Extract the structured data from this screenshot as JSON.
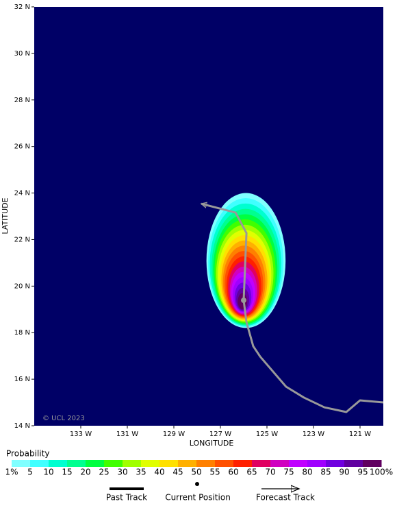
{
  "chart_data": {
    "type": "probability_map",
    "x_label": "LONGITUDE",
    "y_label": "LATITUDE",
    "credit": "© UCL 2023",
    "background": "#000066",
    "xlim": [
      -135,
      -120
    ],
    "xticks": [
      {
        "value": -133,
        "label": "133 W"
      },
      {
        "value": -131,
        "label": "131 W"
      },
      {
        "value": -129,
        "label": "129 W"
      },
      {
        "value": -127,
        "label": "127 W"
      },
      {
        "value": -125,
        "label": "125 W"
      },
      {
        "value": -123,
        "label": "123 W"
      },
      {
        "value": -121,
        "label": "121 W"
      }
    ],
    "ylim": [
      14,
      32
    ],
    "yticks": [
      {
        "value": 14,
        "label": "14 N"
      },
      {
        "value": 16,
        "label": "16 N"
      },
      {
        "value": 18,
        "label": "18 N"
      },
      {
        "value": 20,
        "label": "20 N"
      },
      {
        "value": 22,
        "label": "22 N"
      },
      {
        "value": 24,
        "label": "24 N"
      },
      {
        "value": 26,
        "label": "26 N"
      },
      {
        "value": 28,
        "label": "28 N"
      },
      {
        "value": 30,
        "label": "30 N"
      },
      {
        "value": 32,
        "label": "32 N"
      }
    ],
    "colorbar": {
      "title": "Probability",
      "ticks": [
        {
          "value": 1,
          "label": "1%"
        },
        5,
        10,
        15,
        20,
        25,
        30,
        35,
        40,
        45,
        50,
        55,
        60,
        65,
        70,
        75,
        80,
        85,
        90,
        95,
        {
          "value": 100,
          "label": "100%"
        }
      ],
      "colors": [
        "#80ffff",
        "#40ffff",
        "#00ffd0",
        "#00ff90",
        "#00ff40",
        "#40ff00",
        "#a0ff00",
        "#e0ff00",
        "#ffe000",
        "#ffb000",
        "#ff8000",
        "#ff5000",
        "#ff2000",
        "#e00060",
        "#d000c0",
        "#c000ff",
        "#a000ff",
        "#7000e0",
        "#6000a0",
        "#600060"
      ]
    },
    "contours": [
      {
        "lon": -125.9,
        "lat": 21.1,
        "rx": 1.7,
        "ry": 2.9
      },
      {
        "lon": -125.91,
        "lat": 21.01,
        "rx": 1.62,
        "ry": 2.77
      },
      {
        "lon": -125.92,
        "lat": 20.92,
        "rx": 1.54,
        "ry": 2.63
      },
      {
        "lon": -125.92,
        "lat": 20.82,
        "rx": 1.46,
        "ry": 2.5
      },
      {
        "lon": -125.93,
        "lat": 20.73,
        "rx": 1.38,
        "ry": 2.36
      },
      {
        "lon": -125.94,
        "lat": 20.64,
        "rx": 1.31,
        "ry": 2.23
      },
      {
        "lon": -125.95,
        "lat": 20.55,
        "rx": 1.23,
        "ry": 2.09
      },
      {
        "lon": -125.96,
        "lat": 20.46,
        "rx": 1.15,
        "ry": 1.96
      },
      {
        "lon": -125.96,
        "lat": 20.36,
        "rx": 1.07,
        "ry": 1.83
      },
      {
        "lon": -125.97,
        "lat": 20.27,
        "rx": 0.99,
        "ry": 1.69
      },
      {
        "lon": -125.98,
        "lat": 20.18,
        "rx": 0.91,
        "ry": 1.56
      },
      {
        "lon": -125.99,
        "lat": 20.09,
        "rx": 0.83,
        "ry": 1.42
      },
      {
        "lon": -125.99,
        "lat": 19.99,
        "rx": 0.75,
        "ry": 1.29
      },
      {
        "lon": -126.0,
        "lat": 19.9,
        "rx": 0.67,
        "ry": 1.16
      },
      {
        "lon": -126.01,
        "lat": 19.81,
        "rx": 0.59,
        "ry": 1.02
      },
      {
        "lon": -126.02,
        "lat": 19.72,
        "rx": 0.52,
        "ry": 0.89
      },
      {
        "lon": -126.03,
        "lat": 19.63,
        "rx": 0.44,
        "ry": 0.75
      },
      {
        "lon": -126.03,
        "lat": 19.53,
        "rx": 0.36,
        "ry": 0.62
      },
      {
        "lon": -126.04,
        "lat": 19.44,
        "rx": 0.28,
        "ry": 0.48
      },
      {
        "lon": -126.05,
        "lat": 19.35,
        "rx": 0.2,
        "ry": 0.35
      }
    ],
    "track_color": "#999999",
    "past_track": {
      "name": "Past Track",
      "lon": [
        -120.0,
        -121.0,
        -121.59,
        -122.53,
        -123.41,
        -124.18,
        -125.29,
        -125.59,
        -125.88,
        -126.0
      ],
      "lat": [
        15.0,
        15.09,
        14.59,
        14.79,
        15.21,
        15.68,
        16.97,
        17.42,
        18.45,
        19.39
      ]
    },
    "current_position": {
      "name": "Current Position",
      "lon": -126.0,
      "lat": 19.39
    },
    "forecast_track": {
      "name": "Forecast Track",
      "lon": [
        -126.0,
        -125.88,
        -126.35,
        -127.82
      ],
      "lat": [
        19.39,
        22.28,
        23.16,
        23.54
      ]
    }
  }
}
